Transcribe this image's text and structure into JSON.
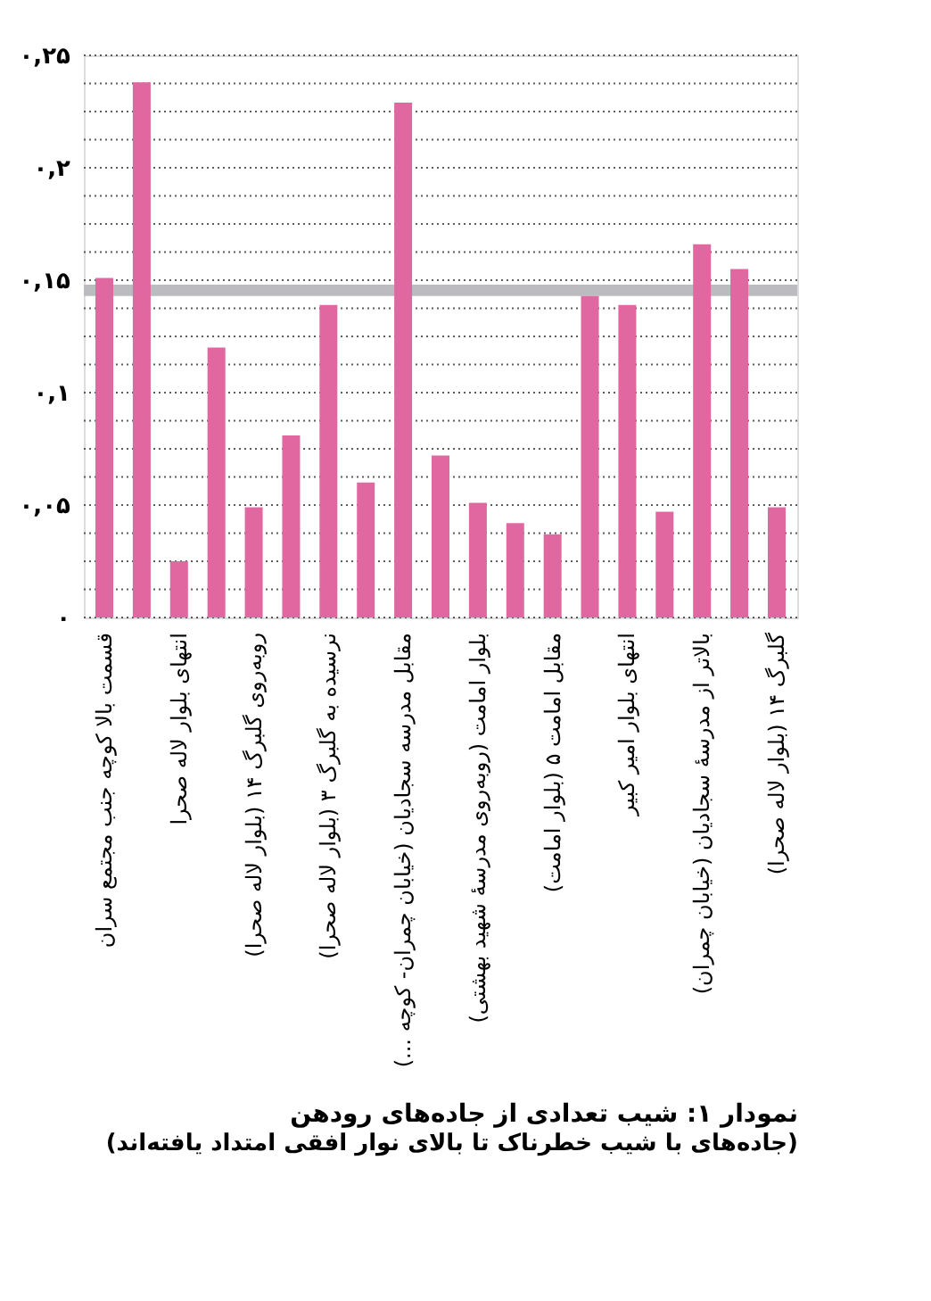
{
  "chart_data": {
    "type": "bar",
    "title": "نمودار ۱: شیب تعدادی از جاده‌های رودهن",
    "subtitle": "(جاده‌های با شیب خطرناک تا بالای نوار افقی امتداد یافته‌اند)",
    "categories": [
      "قسمت بالا کوچه جنب مجتمع سران",
      null,
      "انتهای بلوار لاله صحرا",
      null,
      "روبه‌روی گلبرگ ۱۴ (بلوار لاله صحرا)",
      null,
      "نرسیده به گلبرگ ۳ (بلوار لاله صحرا)",
      null,
      "مقابل مدرسه سجادیان (خیابان چمران- کوچه ...)",
      null,
      "بلوار امامت (روبه‌روی مدرسهٔ شهید بهشتی)",
      null,
      "مقابل امامت ۵ (بلوار امامت)",
      null,
      "انتهای بلوار امیر کبیر",
      null,
      "بالاتر از مدرسهٔ سجادیان (خیابان چمران)",
      null,
      "گلبرگ ۱۴ (بلوار لاله صحرا)"
    ],
    "values": [
      0.151,
      0.238,
      0.025,
      0.12,
      0.049,
      0.081,
      0.139,
      0.06,
      0.229,
      0.072,
      0.051,
      0.042,
      0.037,
      0.143,
      0.139,
      0.047,
      0.166,
      0.155,
      0.049
    ],
    "color": "#e0679f",
    "ylim": [
      0,
      0.25
    ],
    "yticks": [
      {
        "value": 0,
        "label": "۰"
      },
      {
        "value": 0.0125,
        "label": null
      },
      {
        "value": 0.025,
        "label": null
      },
      {
        "value": 0.0375,
        "label": null
      },
      {
        "value": 0.05,
        "label": "۰,۰۵"
      },
      {
        "value": 0.0625,
        "label": null
      },
      {
        "value": 0.075,
        "label": null
      },
      {
        "value": 0.0875,
        "label": null
      },
      {
        "value": 0.1,
        "label": "۰,۱"
      },
      {
        "value": 0.1125,
        "label": null
      },
      {
        "value": 0.125,
        "label": null
      },
      {
        "value": 0.1375,
        "label": null
      },
      {
        "value": 0.15,
        "label": "۰,۱۵"
      },
      {
        "value": 0.1625,
        "label": null
      },
      {
        "value": 0.175,
        "label": null
      },
      {
        "value": 0.1875,
        "label": null
      },
      {
        "value": 0.2,
        "label": "۰,۲"
      },
      {
        "value": 0.2125,
        "label": null
      },
      {
        "value": 0.225,
        "label": null
      },
      {
        "value": 0.2375,
        "label": null
      },
      {
        "value": 0.25,
        "label": "۰,۲۵"
      }
    ],
    "bands": [
      {
        "axis": "y",
        "from": 0.143,
        "to": 0.148,
        "color": "#bcbcc0"
      }
    ],
    "grid": "y"
  }
}
